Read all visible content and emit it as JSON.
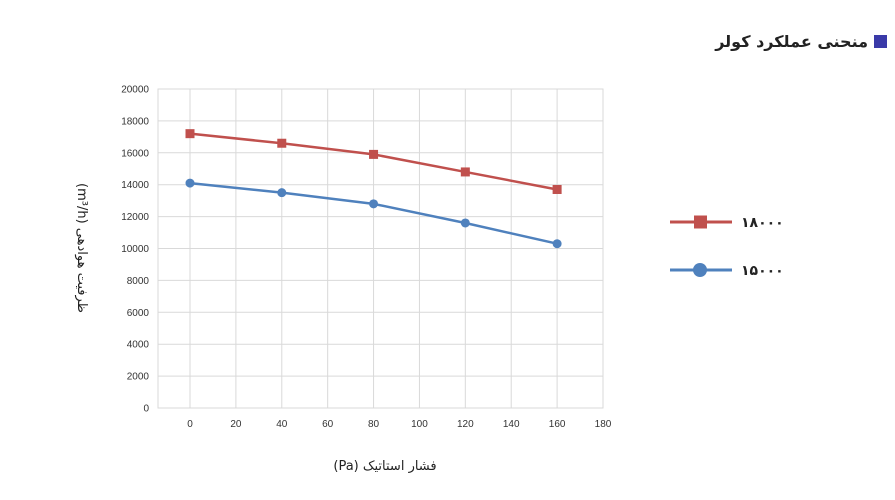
{
  "header": {
    "title": "منحنی عملکرد کولر",
    "accent_color": "#3a3aa8"
  },
  "chart_data": {
    "type": "line",
    "xlabel": "فشار استاتیک (Pa)",
    "ylabel": "ظرفیت هوادهی (m³/h)",
    "xlim": [
      0,
      180
    ],
    "ylim": [
      0,
      20000
    ],
    "x_ticks": [
      "0",
      "20",
      "40",
      "60",
      "80",
      "100",
      "120",
      "140",
      "160",
      "180"
    ],
    "y_ticks": [
      "0",
      "2000",
      "4000",
      "6000",
      "8000",
      "10000",
      "12000",
      "14000",
      "16000",
      "18000",
      "20000"
    ],
    "grid": true,
    "legend_position": "right",
    "x": [
      0,
      40,
      80,
      120,
      160
    ],
    "series": [
      {
        "name": "۱۸۰۰۰",
        "color": "#c0504d",
        "marker": "square",
        "values": [
          17200,
          16600,
          15900,
          14800,
          13700
        ]
      },
      {
        "name": "۱۵۰۰۰",
        "color": "#4f81bd",
        "marker": "circle",
        "values": [
          14100,
          13500,
          12800,
          11600,
          10300
        ]
      }
    ]
  }
}
